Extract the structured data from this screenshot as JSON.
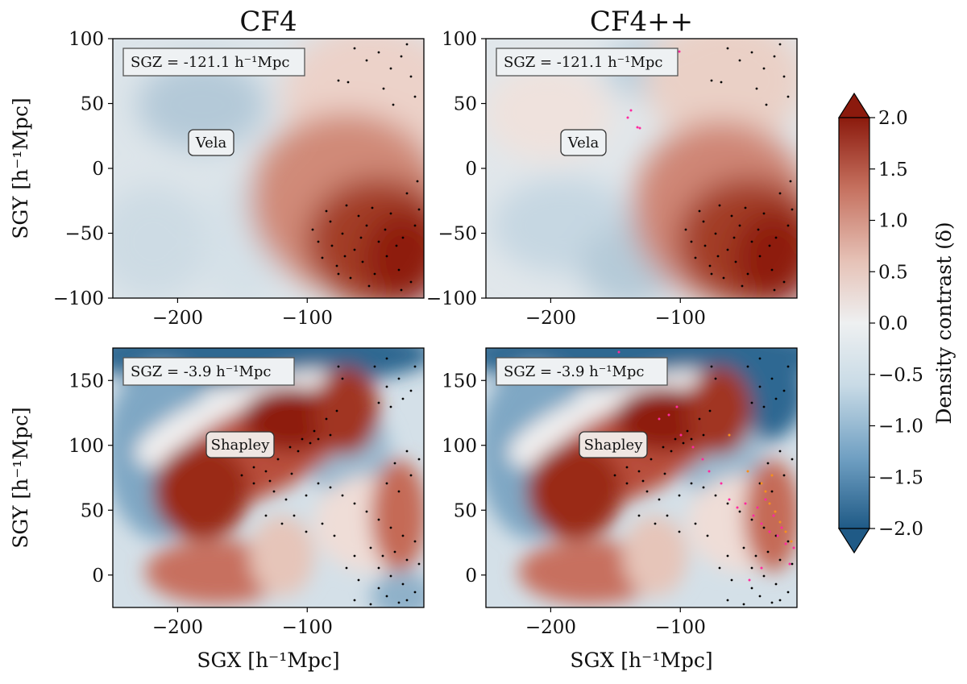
{
  "figure": {
    "column_titles": [
      "CF4",
      "CF4++"
    ],
    "colorbar": {
      "label": "Density contrast (δ)",
      "ticks": [
        "2.0",
        "1.5",
        "1.0",
        "0.5",
        "0.0",
        "−0.5",
        "−1.0",
        "−1.5",
        "−2.0"
      ],
      "range": [
        -2.0,
        2.0
      ],
      "extend": "both",
      "colors": [
        "#1f5a86",
        "#6f9fc2",
        "#c9dbe6",
        "#eef0f1",
        "#e6c2b7",
        "#c5705e",
        "#8b1a0d"
      ]
    },
    "point_colors": {
      "galaxies": "#000000",
      "extra_sample_1": "#ff2aa0",
      "extra_sample_2": "#f5901e"
    }
  },
  "chart_data": [
    {
      "type": "heatmap",
      "panel": "top-left",
      "title": "CF4",
      "slice_label": "SGZ = -121.1 h⁻¹Mpc",
      "structure_label": "Vela",
      "xlabel": "",
      "ylabel": "SGY [h⁻¹Mpc]",
      "xlim": [
        -250,
        -10
      ],
      "ylim": [
        -100,
        100
      ],
      "xticks": [
        -200,
        -100
      ],
      "xticklabels": [
        "−200",
        "−100"
      ],
      "yticks": [
        -100,
        -50,
        0,
        50,
        100
      ],
      "yticklabels": [
        "−100",
        "−50",
        "0",
        "50",
        "100"
      ]
    },
    {
      "type": "heatmap",
      "panel": "top-right",
      "title": "CF4++",
      "slice_label": "SGZ = -121.1 h⁻¹Mpc",
      "structure_label": "Vela",
      "xlabel": "",
      "ylabel": "",
      "xlim": [
        -250,
        -10
      ],
      "ylim": [
        -100,
        100
      ],
      "xticks": [
        -200,
        -100
      ],
      "xticklabels": [
        "−200",
        "−100"
      ],
      "yticks": [
        -100,
        -50,
        0,
        50,
        100
      ],
      "yticklabels": [
        "−100",
        "−50",
        "0",
        "50",
        "100"
      ]
    },
    {
      "type": "heatmap",
      "panel": "bottom-left",
      "title": "",
      "slice_label": "SGZ = -3.9 h⁻¹Mpc",
      "structure_label": "Shapley",
      "xlabel": "SGX [h⁻¹Mpc]",
      "ylabel": "SGY [h⁻¹Mpc]",
      "xlim": [
        -250,
        -10
      ],
      "ylim": [
        -25,
        175
      ],
      "xticks": [
        -200,
        -100
      ],
      "xticklabels": [
        "−200",
        "−100"
      ],
      "yticks": [
        0,
        50,
        100,
        150
      ],
      "yticklabels": [
        "0",
        "50",
        "100",
        "150"
      ]
    },
    {
      "type": "heatmap",
      "panel": "bottom-right",
      "title": "",
      "slice_label": "SGZ = -3.9 h⁻¹Mpc",
      "structure_label": "Shapley",
      "xlabel": "SGX [h⁻¹Mpc]",
      "ylabel": "",
      "xlim": [
        -250,
        -10
      ],
      "ylim": [
        -25,
        175
      ],
      "xticks": [
        -200,
        -100
      ],
      "xticklabels": [
        "−200",
        "−100"
      ],
      "yticks": [
        0,
        50,
        100,
        150
      ],
      "yticklabels": [
        "0",
        "50",
        "100",
        "150"
      ]
    }
  ]
}
